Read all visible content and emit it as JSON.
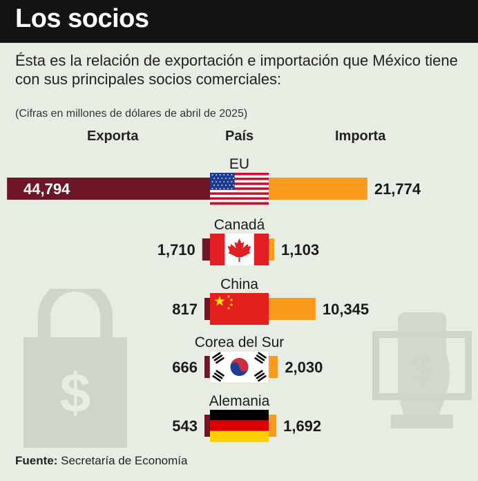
{
  "header": {
    "title": "Los socios",
    "subtitle": "Ésta es la relación de exportación e importación que México tiene con sus principales socios comerciales:",
    "note": "(Cifras en millones de dólares de abril de 2025)"
  },
  "columns": {
    "export": "Exporta",
    "country": "País",
    "import": "Importa"
  },
  "source": {
    "label": "Fuente:",
    "text": "Secretaría de Economía"
  },
  "colors": {
    "export": "#6f1626",
    "import": "#f99b1c",
    "background": "#e8ede4",
    "icons": "#cfd5c9"
  },
  "chart_data": {
    "type": "bar",
    "categories": [
      "EU",
      "Canadá",
      "China",
      "Corea del Sur",
      "Alemania"
    ],
    "series": [
      {
        "name": "Exporta",
        "values": [
          44794,
          1710,
          817,
          666,
          543
        ],
        "labels": [
          "44,794",
          "1,710",
          "817",
          "666",
          "543"
        ]
      },
      {
        "name": "Importa",
        "values": [
          21774,
          1103,
          10345,
          2030,
          1692
        ],
        "labels": [
          "21,774",
          "1,103",
          "10,345",
          "2,030",
          "1,692"
        ]
      }
    ],
    "flag_icons": [
      "usa-flag-icon",
      "canada-flag-icon",
      "china-flag-icon",
      "south-korea-flag-icon",
      "germany-flag-icon"
    ]
  }
}
